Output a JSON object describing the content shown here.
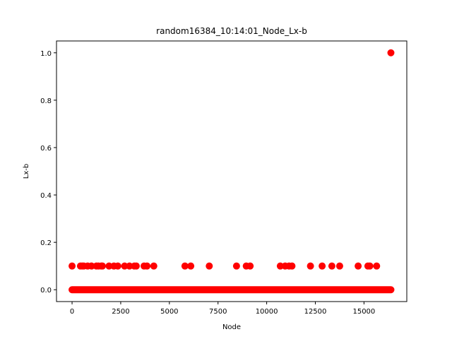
{
  "chart_data": {
    "type": "scatter",
    "title": "random16384_10:14:01_Node_Lx-b",
    "xlabel": "Node",
    "ylabel": "Lx-b",
    "xlim": [
      -800,
      17200
    ],
    "ylim": [
      -0.05,
      1.05
    ],
    "xticks": [
      0,
      2500,
      5000,
      7500,
      10000,
      12500,
      15000
    ],
    "xtick_labels": [
      "0",
      "2500",
      "5000",
      "7500",
      "10000",
      "12500",
      "15000"
    ],
    "yticks": [
      0.0,
      0.2,
      0.4,
      0.6,
      0.8,
      1.0
    ],
    "ytick_labels": [
      "0.0",
      "0.2",
      "0.4",
      "0.6",
      "0.8",
      "1.0"
    ],
    "grid": false,
    "marker_color": "#ff0000",
    "baseline": {
      "y": 0.0,
      "x_start": 0,
      "x_end": 16383
    },
    "points": [
      {
        "x": 0,
        "y": 0.1
      },
      {
        "x": 430,
        "y": 0.1
      },
      {
        "x": 520,
        "y": 0.1
      },
      {
        "x": 600,
        "y": 0.1
      },
      {
        "x": 800,
        "y": 0.1
      },
      {
        "x": 1000,
        "y": 0.1
      },
      {
        "x": 1250,
        "y": 0.1
      },
      {
        "x": 1350,
        "y": 0.1
      },
      {
        "x": 1500,
        "y": 0.1
      },
      {
        "x": 1560,
        "y": 0.1
      },
      {
        "x": 1900,
        "y": 0.1
      },
      {
        "x": 2150,
        "y": 0.1
      },
      {
        "x": 2350,
        "y": 0.1
      },
      {
        "x": 2700,
        "y": 0.1
      },
      {
        "x": 2950,
        "y": 0.1
      },
      {
        "x": 3200,
        "y": 0.1
      },
      {
        "x": 3300,
        "y": 0.1
      },
      {
        "x": 3700,
        "y": 0.1
      },
      {
        "x": 3850,
        "y": 0.1
      },
      {
        "x": 4200,
        "y": 0.1
      },
      {
        "x": 5800,
        "y": 0.1
      },
      {
        "x": 6100,
        "y": 0.1
      },
      {
        "x": 7050,
        "y": 0.1
      },
      {
        "x": 8450,
        "y": 0.1
      },
      {
        "x": 8950,
        "y": 0.1
      },
      {
        "x": 9150,
        "y": 0.1
      },
      {
        "x": 10700,
        "y": 0.1
      },
      {
        "x": 10950,
        "y": 0.1
      },
      {
        "x": 11150,
        "y": 0.1
      },
      {
        "x": 11300,
        "y": 0.1
      },
      {
        "x": 12250,
        "y": 0.1
      },
      {
        "x": 12850,
        "y": 0.1
      },
      {
        "x": 13350,
        "y": 0.1
      },
      {
        "x": 13750,
        "y": 0.1
      },
      {
        "x": 14700,
        "y": 0.1
      },
      {
        "x": 15200,
        "y": 0.1
      },
      {
        "x": 15300,
        "y": 0.1
      },
      {
        "x": 15650,
        "y": 0.1
      },
      {
        "x": 16383,
        "y": 1.0
      }
    ]
  }
}
